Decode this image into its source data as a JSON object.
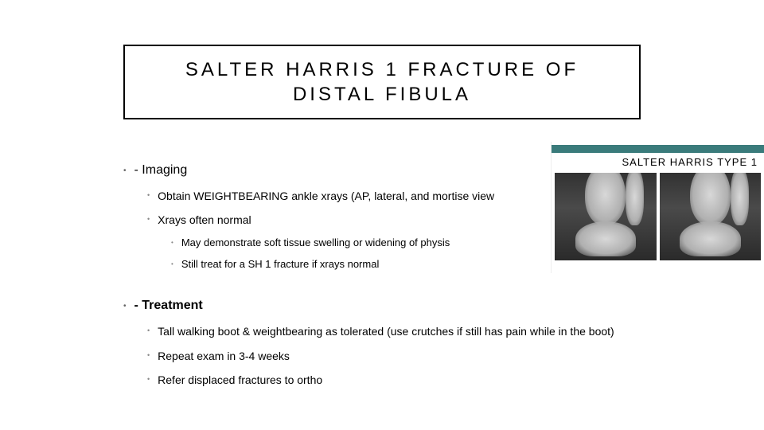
{
  "title": "SALTER HARRIS 1 FRACTURE OF DISTAL FIBULA",
  "figure": {
    "caption": "SALTER HARRIS TYPE 1",
    "bar_color": "#3a7b7b"
  },
  "sections": {
    "imaging": {
      "heading": "- Imaging",
      "items": [
        "Obtain WEIGHTBEARING ankle xrays (AP, lateral, and mortise view",
        "Xrays often normal"
      ],
      "sub_items": [
        "May demonstrate soft tissue swelling or widening of physis",
        "Still treat for a SH 1 fracture if xrays normal"
      ]
    },
    "treatment": {
      "heading": "- Treatment",
      "items": [
        "Tall walking boot & weightbearing as tolerated (use crutches if still has pain while in the boot)",
        "Repeat exam in 3-4 weeks",
        "Refer displaced fractures to ortho"
      ]
    }
  },
  "style": {
    "background": "#ffffff",
    "title_border": "#000000",
    "title_fontsize": 24,
    "title_letter_spacing": 4,
    "body_fontsize_l1": 16,
    "body_fontsize_l2": 14,
    "body_fontsize_l3": 13,
    "bullet_color": "#888888"
  }
}
